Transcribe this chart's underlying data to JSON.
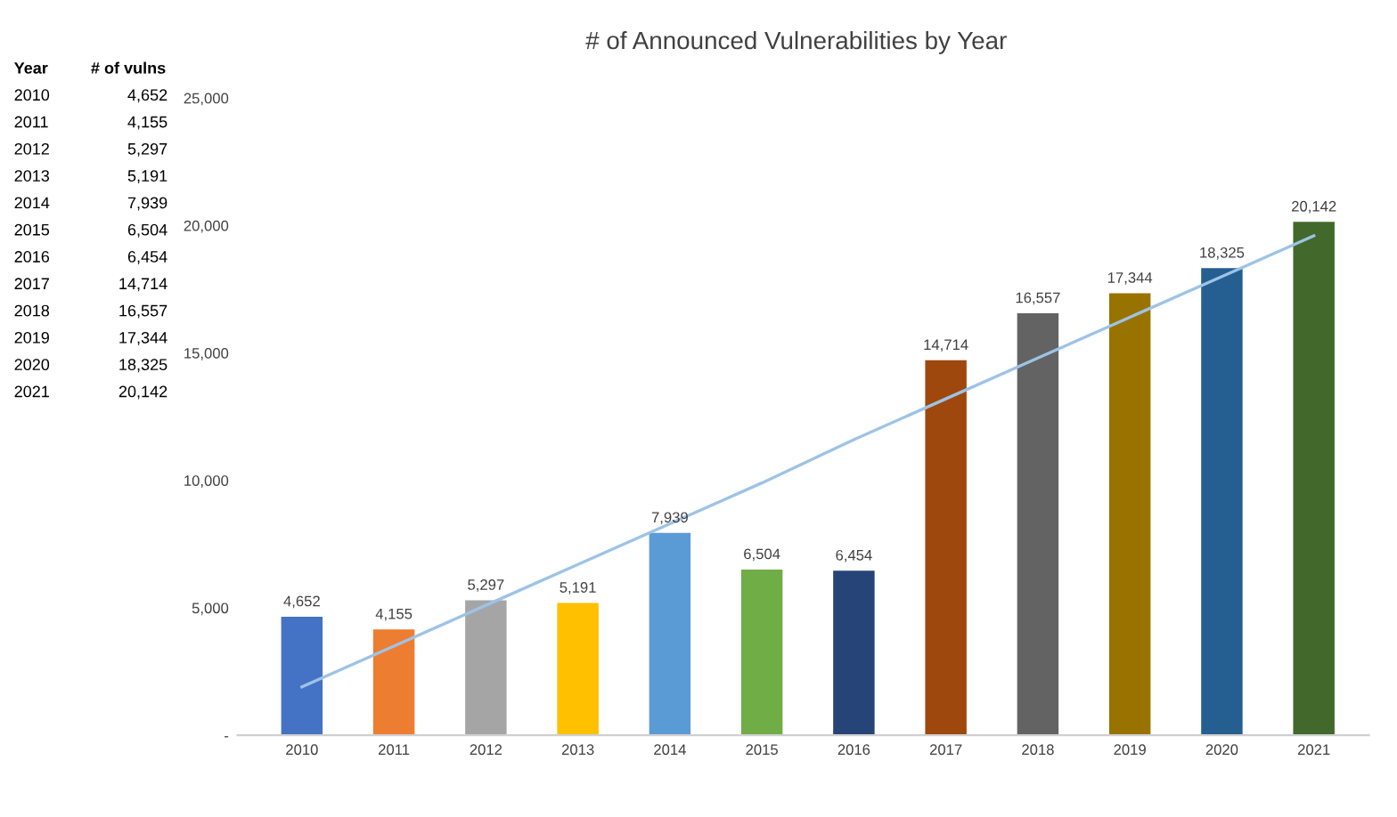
{
  "chart_data": {
    "type": "bar",
    "title": "# of Announced Vulnerabilities by Year",
    "categories": [
      "2010",
      "2011",
      "2012",
      "2013",
      "2014",
      "2015",
      "2016",
      "2017",
      "2018",
      "2019",
      "2020",
      "2021"
    ],
    "series": [
      {
        "values": [
          4652,
          4155,
          5297,
          5191,
          7939,
          6504,
          6454,
          14714,
          16557,
          17344,
          18325,
          20142
        ],
        "colors": [
          "#4472c4",
          "#ed7d31",
          "#a5a5a5",
          "#ffc000",
          "#5b9bd5",
          "#70ad47",
          "#264478",
          "#9e480e",
          "#636363",
          "#997300",
          "#255e91",
          "#43682b"
        ],
        "value_labels": [
          "4,652",
          "4,155",
          "5,297",
          "5,191",
          "7,939",
          "6,504",
          "6,454",
          "14,714",
          "16,557",
          "17,344",
          "18,325",
          "20,142"
        ]
      },
      {
        "type": "line",
        "values": [
          1900,
          3500,
          5100,
          6700,
          8300,
          9900,
          11600,
          13200,
          14800,
          16400,
          18000,
          19600
        ],
        "color": "#9dc3e6"
      }
    ],
    "ylim": [
      0,
      25000
    ],
    "yticks": [
      {
        "value": 0,
        "label": "-"
      },
      {
        "value": 5000,
        "label": "5,000"
      },
      {
        "value": 10000,
        "label": "10,000"
      },
      {
        "value": 15000,
        "label": "15,000"
      },
      {
        "value": 20000,
        "label": "20,000"
      },
      {
        "value": 25000,
        "label": "25,000"
      }
    ],
    "grid": false,
    "legend": false,
    "annotations": [
      "Year",
      "# of vulns"
    ]
  }
}
